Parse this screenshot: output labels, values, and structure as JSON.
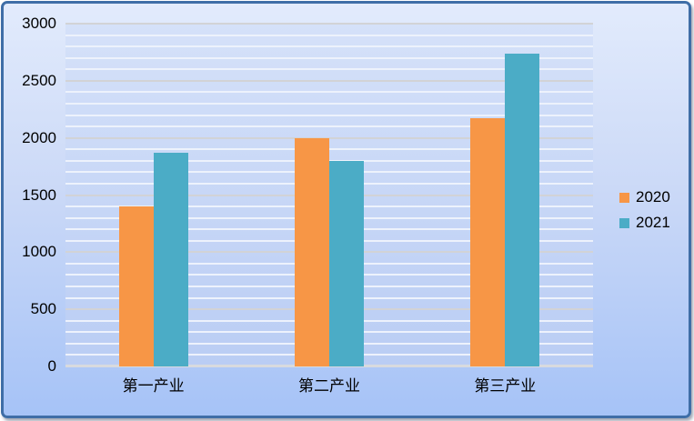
{
  "chart_data": {
    "type": "bar",
    "title": "",
    "categories": [
      "第一产业",
      "第二产业",
      "第三产业"
    ],
    "series": [
      {
        "name": "2020",
        "color": "#F79646",
        "values": [
          1400,
          2000,
          2175
        ]
      },
      {
        "name": "2021",
        "color": "#4BACC6",
        "values": [
          1870,
          1800,
          2740
        ]
      }
    ],
    "xlabel": "",
    "ylabel": "",
    "ylim": [
      0,
      3000
    ],
    "y_ticks": [
      "0",
      "500",
      "1000",
      "1500",
      "2000",
      "2500",
      "3000"
    ],
    "major_grid_interval": 500,
    "minor_grid_interval": 100,
    "grid": "horizontal: gray major lines every 500, white minor lines every 100",
    "legend_position": "right"
  },
  "colors": {
    "frame_border": "#3F6EA7",
    "background_top": "#E2EBFC",
    "background_bottom": "#A6C3F7",
    "plot_top": "#D5E1F9",
    "plot_bottom": "#BACDF4",
    "minor_gridline": "#EDF2FC",
    "major_gridline": "#D2D3D6",
    "axis_line": "#D8DADE",
    "text": "#000000"
  }
}
